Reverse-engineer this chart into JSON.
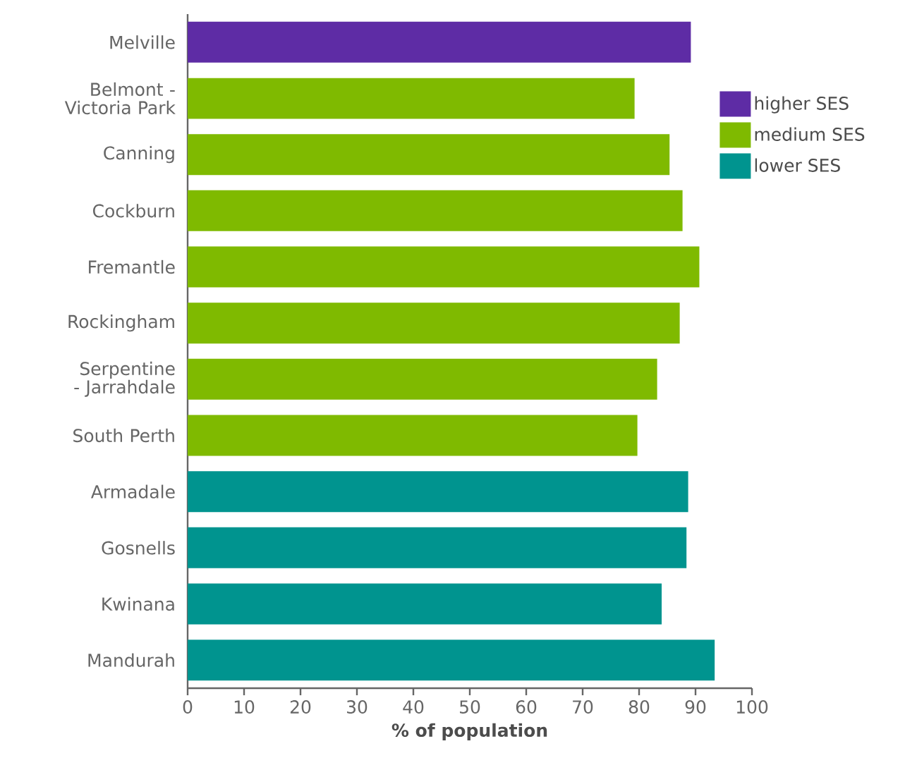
{
  "chart_data": {
    "type": "bar",
    "orientation": "horizontal",
    "xlabel": "% of population",
    "categories": [
      "Melville",
      "Belmont - Victoria Park",
      "Canning",
      "Cockburn",
      "Fremantle",
      "Rockingham",
      "Serpentine - Jarrahdale",
      "South Perth",
      "Armadale",
      "Gosnells",
      "Kwinana",
      "Mandurah"
    ],
    "series": [
      {
        "name": "higher SES",
        "color": "#5e2ca5",
        "values": [
          89.2,
          null,
          null,
          null,
          null,
          null,
          null,
          null,
          null,
          null,
          null,
          null
        ]
      },
      {
        "name": "medium SES",
        "color": "#7fba00",
        "values": [
          null,
          79.2,
          85.4,
          87.7,
          90.7,
          87.2,
          83.2,
          79.7,
          null,
          null,
          null,
          null
        ]
      },
      {
        "name": "lower SES",
        "color": "#00948f",
        "values": [
          null,
          null,
          null,
          null,
          null,
          null,
          null,
          null,
          88.7,
          88.4,
          84.0,
          93.4
        ]
      }
    ],
    "xlim": [
      0,
      100
    ],
    "xticks": [
      0,
      10,
      20,
      30,
      40,
      50,
      60,
      70,
      80,
      90,
      100
    ],
    "legend": "top right"
  }
}
